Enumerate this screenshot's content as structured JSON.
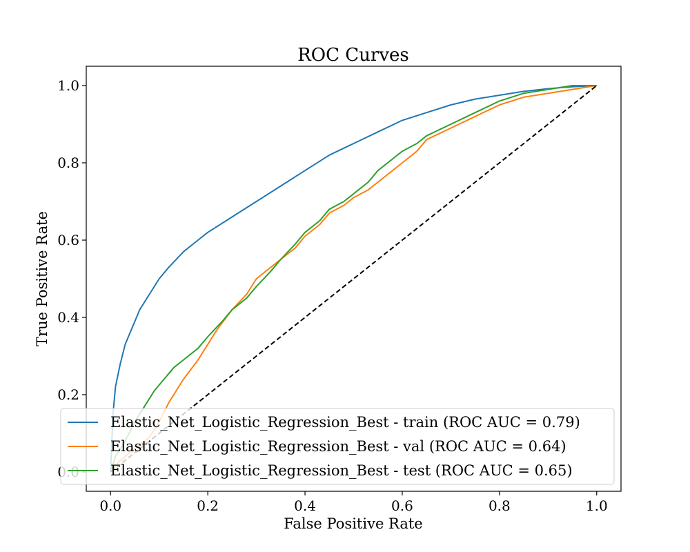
{
  "chart_data": {
    "type": "line",
    "title": "ROC Curves",
    "xlabel": "False Positive Rate",
    "ylabel": "True Positive Rate",
    "xlim": [
      -0.05,
      1.05
    ],
    "ylim": [
      -0.05,
      1.05
    ],
    "xticks": [
      "0.0",
      "0.2",
      "0.4",
      "0.6",
      "0.8",
      "1.0"
    ],
    "yticks": [
      "0.0",
      "0.2",
      "0.4",
      "0.6",
      "0.8",
      "1.0"
    ],
    "legend_position": "lower-right",
    "grid": false,
    "series": [
      {
        "name": "Elastic_Net_Logistic_Regression_Best - train (ROC AUC = 0.79)",
        "color": "#1f77b4",
        "x": [
          0,
          0.005,
          0.01,
          0.02,
          0.03,
          0.04,
          0.05,
          0.06,
          0.08,
          0.1,
          0.12,
          0.15,
          0.18,
          0.2,
          0.25,
          0.3,
          0.35,
          0.4,
          0.45,
          0.5,
          0.55,
          0.6,
          0.65,
          0.7,
          0.75,
          0.8,
          0.85,
          0.9,
          0.95,
          1.0
        ],
        "y": [
          0,
          0.15,
          0.22,
          0.28,
          0.33,
          0.36,
          0.39,
          0.42,
          0.46,
          0.5,
          0.53,
          0.57,
          0.6,
          0.62,
          0.66,
          0.7,
          0.74,
          0.78,
          0.82,
          0.85,
          0.88,
          0.91,
          0.93,
          0.95,
          0.965,
          0.975,
          0.985,
          0.992,
          0.997,
          1.0
        ]
      },
      {
        "name": "Elastic_Net_Logistic_Regression_Best - val (ROC AUC = 0.64)",
        "color": "#ff7f0e",
        "x": [
          0,
          0.02,
          0.05,
          0.08,
          0.1,
          0.12,
          0.15,
          0.18,
          0.2,
          0.22,
          0.25,
          0.28,
          0.3,
          0.33,
          0.35,
          0.38,
          0.4,
          0.43,
          0.45,
          0.48,
          0.5,
          0.53,
          0.55,
          0.58,
          0.6,
          0.63,
          0.65,
          0.7,
          0.75,
          0.8,
          0.85,
          0.9,
          0.95,
          1.0
        ],
        "y": [
          0,
          0.03,
          0.06,
          0.09,
          0.13,
          0.18,
          0.24,
          0.29,
          0.33,
          0.37,
          0.42,
          0.46,
          0.5,
          0.53,
          0.55,
          0.58,
          0.61,
          0.64,
          0.67,
          0.69,
          0.71,
          0.73,
          0.75,
          0.78,
          0.8,
          0.83,
          0.86,
          0.89,
          0.92,
          0.95,
          0.97,
          0.98,
          0.99,
          1.0
        ]
      },
      {
        "name": "Elastic_Net_Logistic_Regression_Best - test (ROC AUC = 0.65)",
        "color": "#2ca02c",
        "x": [
          0,
          0.01,
          0.03,
          0.05,
          0.07,
          0.09,
          0.11,
          0.13,
          0.15,
          0.18,
          0.2,
          0.23,
          0.25,
          0.28,
          0.3,
          0.33,
          0.35,
          0.38,
          0.4,
          0.43,
          0.45,
          0.48,
          0.5,
          0.53,
          0.55,
          0.58,
          0.6,
          0.63,
          0.65,
          0.7,
          0.75,
          0.8,
          0.85,
          0.9,
          0.95,
          1.0
        ],
        "y": [
          0,
          0.04,
          0.08,
          0.13,
          0.17,
          0.21,
          0.24,
          0.27,
          0.29,
          0.32,
          0.35,
          0.39,
          0.42,
          0.45,
          0.48,
          0.52,
          0.55,
          0.59,
          0.62,
          0.65,
          0.68,
          0.7,
          0.72,
          0.75,
          0.78,
          0.81,
          0.83,
          0.85,
          0.87,
          0.9,
          0.93,
          0.96,
          0.98,
          0.99,
          1.0,
          1.0
        ]
      }
    ],
    "reference_line": {
      "x": [
        0,
        1
      ],
      "y": [
        0,
        1
      ],
      "color": "#000000",
      "style": "dashed"
    }
  }
}
